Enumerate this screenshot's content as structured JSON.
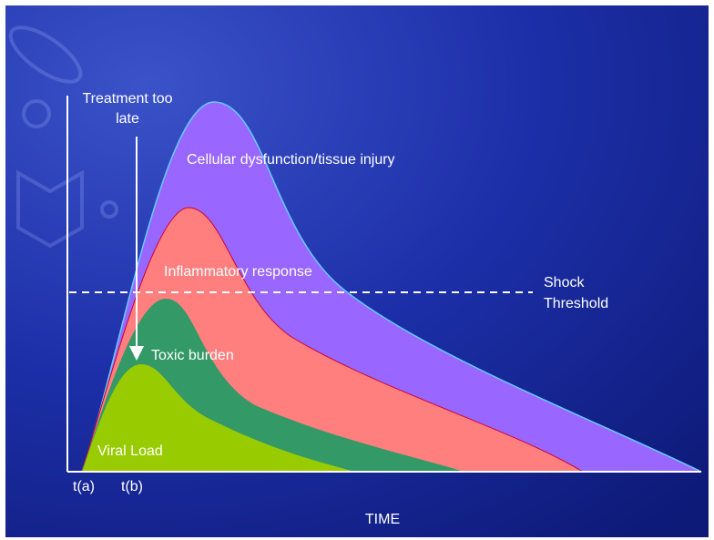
{
  "treatment_label": {
    "lines": [
      "Treatment too",
      "late"
    ]
  },
  "areas": {
    "cellular": "Cellular dysfunction/tissue injury",
    "inflammatory": "Inflammatory response",
    "toxic": "Toxic burden",
    "viral": "Viral Load"
  },
  "threshold": {
    "lines": [
      "Shock",
      "Threshold"
    ]
  },
  "time_marks": [
    "t(a)",
    "t(b)"
  ],
  "x_axis_label": "TIME"
}
